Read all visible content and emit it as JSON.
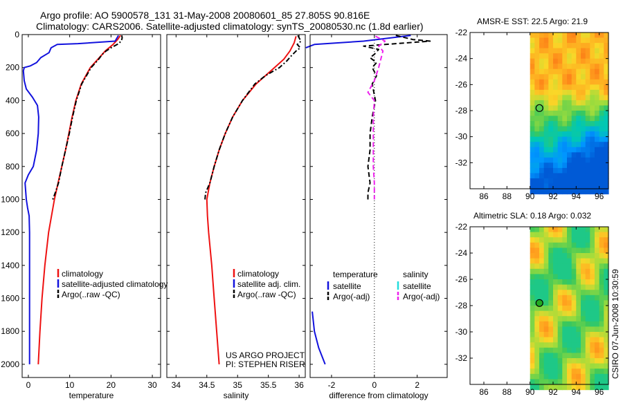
{
  "header": {
    "line1": "Argo profile: AO 5900578_131 31-May-2008 20080601_85 27.805S 90.816E",
    "line2": "Climatology: CARS2006. Satellite-adjusted climatology: synTS_20080530.nc (1.8d earlier)"
  },
  "credit": "CSIRO 07-Jun-2008 10:30:59",
  "project_note": [
    "US ARGO PROJECT",
    "PI: STEPHEN RISER"
  ],
  "colors": {
    "red": "#ee1111",
    "blue": "#1111dd",
    "black": "#000000",
    "cyan": "#22dddd",
    "magenta": "#ee22ee"
  },
  "chart_data": [
    {
      "type": "line",
      "xlabel": "temperature",
      "ylabel": "",
      "xlim": [
        -1.5,
        32
      ],
      "ylim": [
        2080,
        0
      ],
      "xticks": [
        0,
        10,
        20,
        30
      ],
      "yticks": [
        0,
        200,
        400,
        600,
        800,
        1000,
        1200,
        1400,
        1600,
        1800,
        2000
      ],
      "legend": {
        "position": "lower-right",
        "entries": [
          "climatology",
          "satellite-adjusted climatology",
          "Argo(..raw -QC)"
        ]
      },
      "series": [
        {
          "name": "climatology",
          "color": "red",
          "dash": "solid",
          "depth": [
            5,
            30,
            60,
            100,
            150,
            200,
            300,
            400,
            500,
            600,
            700,
            800,
            900,
            1000,
            1200,
            1400,
            1600,
            1800,
            2000
          ],
          "values": [
            22.3,
            21.6,
            20.5,
            18.6,
            16.8,
            15.0,
            12.8,
            11.5,
            10.6,
            9.8,
            9.0,
            8.1,
            7.2,
            6.3,
            4.9,
            4.0,
            3.3,
            2.8,
            2.4
          ]
        },
        {
          "name": "satellite-adjusted climatology",
          "color": "blue",
          "dash": "solid",
          "depth": [
            5,
            40,
            55,
            60,
            80,
            110,
            140,
            170,
            190,
            200,
            220,
            280,
            330,
            380,
            430,
            500,
            600,
            700,
            800,
            850,
            900,
            1000,
            1050,
            1100,
            1200,
            1300,
            1500,
            1700,
            1800,
            2000
          ],
          "values": [
            21.8,
            21.0,
            12.0,
            7.0,
            5.5,
            5.0,
            3.0,
            2.0,
            0.5,
            -1.0,
            -1.2,
            -1.0,
            -0.5,
            1.0,
            2.2,
            2.5,
            2.4,
            2.0,
            1.2,
            0.0,
            -0.8,
            -0.5,
            -0.2,
            0.2,
            0.3,
            0.3,
            0.3,
            0.3,
            0.3,
            0.3
          ]
        },
        {
          "name": "Argo(..raw -QC)",
          "color": "black",
          "dash": "dashdot",
          "depth": [
            5,
            20,
            40,
            60,
            80,
            100,
            120,
            150,
            200,
            300,
            400,
            500,
            600,
            700,
            800,
            900,
            960,
            1000
          ],
          "values": [
            22.6,
            22.7,
            22.5,
            21.5,
            20.0,
            18.8,
            17.9,
            17.0,
            15.2,
            12.9,
            11.6,
            10.7,
            9.9,
            9.0,
            8.1,
            7.3,
            6.5,
            5.9
          ]
        }
      ]
    },
    {
      "type": "line",
      "xlabel": "salinity",
      "ylabel": "",
      "xlim": [
        33.85,
        36.1
      ],
      "ylim": [
        2080,
        0
      ],
      "xticks": [
        34,
        34.5,
        35,
        35.5,
        36
      ],
      "xticklabels": [
        "34",
        "34.5",
        "35",
        "35.5",
        "36"
      ],
      "yticks": [
        0,
        200,
        400,
        600,
        800,
        1000,
        1200,
        1400,
        1600,
        1800,
        2000
      ],
      "legend": {
        "position": "lower-right",
        "entries": [
          "climatology",
          "satellite adj. clim.",
          "Argo(..raw -QC)"
        ]
      },
      "series": [
        {
          "name": "climatology",
          "color": "red",
          "dash": "solid",
          "depth": [
            10,
            50,
            100,
            150,
            200,
            300,
            400,
            500,
            600,
            700,
            800,
            900,
            1000,
            1100,
            1200,
            1400,
            1600,
            1800,
            2000
          ],
          "values": [
            35.95,
            35.92,
            35.85,
            35.75,
            35.6,
            35.3,
            35.08,
            34.92,
            34.8,
            34.7,
            34.62,
            34.55,
            34.5,
            34.51,
            34.53,
            34.58,
            34.62,
            34.66,
            34.7
          ]
        },
        {
          "name": "Argo(..raw -QC)",
          "color": "black",
          "dash": "dashdot",
          "depth": [
            5,
            20,
            40,
            60,
            80,
            100,
            130,
            160,
            200,
            250,
            300,
            400,
            500,
            600,
            700,
            800,
            900,
            960,
            1000
          ],
          "values": [
            35.98,
            36.0,
            36.03,
            35.97,
            36.02,
            35.95,
            35.87,
            35.8,
            35.68,
            35.45,
            35.28,
            35.08,
            34.92,
            34.8,
            34.7,
            34.62,
            34.55,
            34.48,
            34.47
          ]
        }
      ]
    },
    {
      "type": "line",
      "xlabel": "difference from climatology",
      "ylabel": "",
      "xlim": [
        -3.0,
        3.4
      ],
      "ylim": [
        2080,
        0
      ],
      "xticks": [
        -2,
        0,
        2
      ],
      "yticks": [
        0,
        200,
        400,
        600,
        800,
        1000,
        1200,
        1400,
        1600,
        1800,
        2000
      ],
      "legend": {
        "position": "bottom",
        "headers": [
          "temperature",
          "salinity"
        ],
        "entries": [
          "satellite",
          "Argo(-adj)",
          "satellite",
          "Argo(-adj)"
        ]
      },
      "series": [
        {
          "name": "temperature satellite",
          "color": "blue",
          "dash": "solid",
          "depth": [
            5,
            40,
            60,
            80
          ],
          "values": [
            1.7,
            -0.5,
            -2.8,
            -3.2
          ]
        },
        {
          "name": "temperature satellite",
          "color": "blue",
          "dash": "solid",
          "depth": [
            1680,
            1800,
            1900,
            2000
          ],
          "values": [
            -2.9,
            -2.8,
            -2.6,
            -2.3
          ]
        },
        {
          "name": "temperature Argo(-adj)",
          "color": "black",
          "dash": "dashed",
          "depth": [
            5,
            30,
            40,
            55,
            70,
            90,
            120,
            140,
            170,
            200,
            250,
            300,
            400,
            500,
            600,
            700,
            800,
            900,
            960,
            1000
          ],
          "values": [
            1.0,
            1.8,
            2.6,
            1.0,
            -0.5,
            0.2,
            0.0,
            -0.2,
            0.1,
            -0.1,
            0.1,
            -0.1,
            0.05,
            -0.1,
            -0.2,
            -0.2,
            -0.3,
            -0.2,
            -0.3,
            -0.3
          ]
        },
        {
          "name": "salinity Argo(-adj)",
          "color": "magenta",
          "dash": "dashed",
          "depth": [
            10,
            40,
            70,
            100,
            150,
            200,
            280,
            350,
            400,
            500,
            600,
            700,
            800,
            900,
            1000
          ],
          "values": [
            0.05,
            0.5,
            0.2,
            0.4,
            0.3,
            0.2,
            0.0,
            -0.3,
            0.0,
            -0.05,
            -0.05,
            -0.05,
            -0.05,
            0.0,
            0.0
          ]
        }
      ]
    },
    {
      "type": "heatmap",
      "title": "AMSR-E SST: 22.5 Argo: 21.9",
      "xlim": [
        84.8,
        96.8
      ],
      "ylim": [
        -34,
        -22
      ],
      "xticks": [
        86,
        88,
        90,
        92,
        94,
        96
      ],
      "yticks": [
        -22,
        -24,
        -26,
        -28,
        -30,
        -32
      ],
      "data_lon_start": 90,
      "marker": {
        "lon": 90.816,
        "lat": -27.805,
        "fill": "none"
      },
      "palette": "jet-warm-to-cool"
    },
    {
      "type": "heatmap",
      "title": "Altimetric SLA: 0.18 Argo: 0.032",
      "xlim": [
        84.8,
        96.8
      ],
      "ylim": [
        -34,
        -22
      ],
      "xticks": [
        86,
        88,
        90,
        92,
        94,
        96
      ],
      "yticks": [
        -22,
        -24,
        -26,
        -28,
        -30,
        -32
      ],
      "data_lon_start": 90,
      "marker": {
        "lon": 90.816,
        "lat": -27.805,
        "fill": "#22aa22"
      },
      "palette": "green-yellow-orange"
    }
  ]
}
